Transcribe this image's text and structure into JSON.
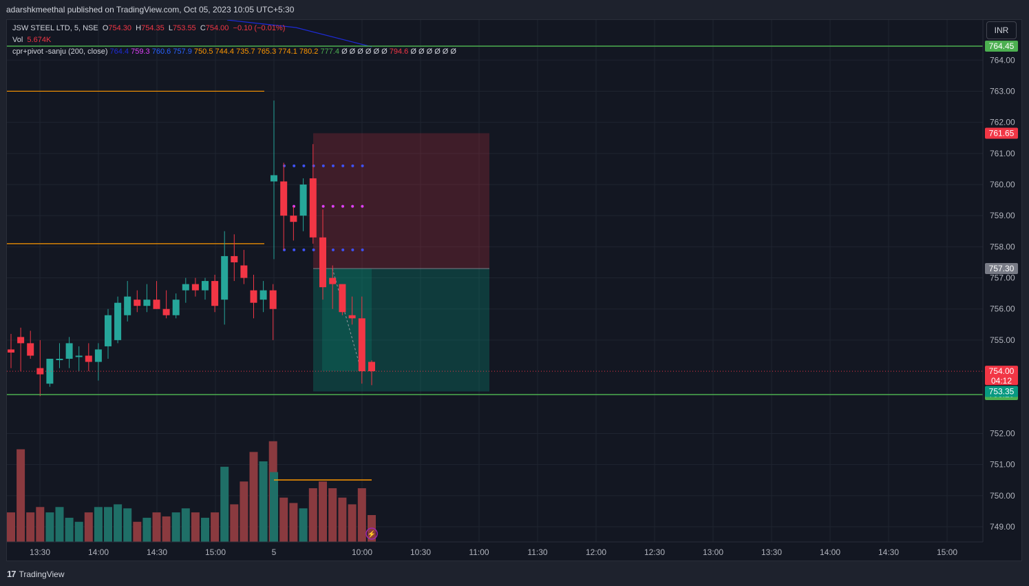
{
  "header": {
    "published": "adarshkmeethal published on TradingView.com, Oct 05, 2023 10:05 UTC+5:30"
  },
  "legend": {
    "symbol": "JSW STEEL LTD, 5, NSE",
    "o_label": "O",
    "o_value": "754.30",
    "h_label": "H",
    "h_value": "754.35",
    "l_label": "L",
    "l_value": "753.55",
    "c_label": "C",
    "c_value": "754.00",
    "change": "−0.10 (−0.01%)",
    "vol_label": "Vol",
    "vol_value": "5.674K",
    "indicator_name": "cpr+pivot -sanju (200, close)",
    "indicator_values": [
      {
        "text": "764.4",
        "color": "#1e2bd6"
      },
      {
        "text": "759.3",
        "color": "#e040fb"
      },
      {
        "text": "760.6",
        "color": "#2962ff"
      },
      {
        "text": "757.9",
        "color": "#2962ff"
      },
      {
        "text": "750.5",
        "color": "#ff9800"
      },
      {
        "text": "744.4",
        "color": "#ff9800"
      },
      {
        "text": "735.7",
        "color": "#ff9800"
      },
      {
        "text": "765.3",
        "color": "#ff9800"
      },
      {
        "text": "774.1",
        "color": "#ff9800"
      },
      {
        "text": "780.2",
        "color": "#ff9800"
      },
      {
        "text": "777.4",
        "color": "#4caf50"
      },
      {
        "text": "Ø Ø Ø Ø Ø Ø",
        "color": "#d1d4dc"
      },
      {
        "text": "794.6",
        "color": "#f23645"
      },
      {
        "text": "Ø Ø Ø Ø Ø Ø",
        "color": "#d1d4dc"
      }
    ]
  },
  "currency": "INR",
  "footer": {
    "brand": "TradingView"
  },
  "colors": {
    "up": "#26a69a",
    "down": "#f23645",
    "up_vol": "#1f6f67",
    "down_vol": "#8a3a3f",
    "green_line": "#4caf50",
    "orange_line": "#ff9800",
    "pivot_blue": "#3f51f5",
    "pivot_magenta": "#e040fb",
    "grid": "#1f2430",
    "bg": "#131722"
  },
  "chart_data": {
    "type": "candlestick",
    "symbol": "JSW STEEL LTD",
    "timeframe": "5",
    "ylim": [
      748.5,
      764.8
    ],
    "y_ticks": [
      "764.00",
      "763.00",
      "762.00",
      "761.00",
      "760.00",
      "759.00",
      "758.00",
      "757.00",
      "756.00",
      "755.00",
      "752.00",
      "751.00",
      "750.00",
      "749.00"
    ],
    "x_ticks": [
      "13:30",
      "14:00",
      "14:30",
      "15:00",
      "5",
      "10:00",
      "10:30",
      "11:00",
      "11:30",
      "12:00",
      "12:30",
      "13:00",
      "13:30",
      "14:00",
      "14:30",
      "15:00"
    ],
    "candles": [
      {
        "o": 754.7,
        "h": 755.2,
        "l": 754.1,
        "c": 754.6
      },
      {
        "o": 755.1,
        "h": 755.4,
        "l": 754.0,
        "c": 754.9
      },
      {
        "o": 754.9,
        "h": 755.3,
        "l": 754.4,
        "c": 754.5
      },
      {
        "o": 754.1,
        "h": 755.0,
        "l": 753.2,
        "c": 753.9
      },
      {
        "o": 753.6,
        "h": 754.4,
        "l": 753.5,
        "c": 754.4
      },
      {
        "o": 754.4,
        "h": 754.9,
        "l": 754.1,
        "c": 754.4
      },
      {
        "o": 754.4,
        "h": 755.1,
        "l": 754.1,
        "c": 754.9
      },
      {
        "o": 754.5,
        "h": 754.8,
        "l": 754.0,
        "c": 754.5
      },
      {
        "o": 754.5,
        "h": 754.9,
        "l": 754.0,
        "c": 754.3
      },
      {
        "o": 754.3,
        "h": 754.9,
        "l": 753.7,
        "c": 754.7
      },
      {
        "o": 754.8,
        "h": 756.0,
        "l": 754.4,
        "c": 755.8
      },
      {
        "o": 755.0,
        "h": 756.4,
        "l": 754.9,
        "c": 756.2
      },
      {
        "o": 755.8,
        "h": 756.9,
        "l": 755.6,
        "c": 756.4
      },
      {
        "o": 756.3,
        "h": 756.6,
        "l": 755.9,
        "c": 756.1
      },
      {
        "o": 756.1,
        "h": 756.8,
        "l": 755.9,
        "c": 756.3
      },
      {
        "o": 756.3,
        "h": 756.9,
        "l": 756.0,
        "c": 756.0
      },
      {
        "o": 756.0,
        "h": 756.6,
        "l": 755.7,
        "c": 755.8
      },
      {
        "o": 755.8,
        "h": 756.5,
        "l": 755.7,
        "c": 756.3
      },
      {
        "o": 756.6,
        "h": 757.0,
        "l": 756.2,
        "c": 756.8
      },
      {
        "o": 756.8,
        "h": 757.0,
        "l": 756.4,
        "c": 756.6
      },
      {
        "o": 756.6,
        "h": 757.0,
        "l": 756.3,
        "c": 756.9
      },
      {
        "o": 756.9,
        "h": 757.1,
        "l": 755.9,
        "c": 756.1
      },
      {
        "o": 756.3,
        "h": 758.5,
        "l": 755.5,
        "c": 757.7
      },
      {
        "o": 757.7,
        "h": 758.4,
        "l": 756.9,
        "c": 757.5
      },
      {
        "o": 757.4,
        "h": 757.9,
        "l": 756.8,
        "c": 757.0
      },
      {
        "o": 756.6,
        "h": 757.1,
        "l": 755.7,
        "c": 756.2
      },
      {
        "o": 756.3,
        "h": 756.9,
        "l": 755.9,
        "c": 756.6
      },
      {
        "o": 756.6,
        "h": 756.8,
        "l": 755.0,
        "c": 756.0
      },
      {
        "o": 760.1,
        "h": 762.7,
        "l": 757.6,
        "c": 760.3
      },
      {
        "o": 760.1,
        "h": 760.7,
        "l": 757.9,
        "c": 759.0
      },
      {
        "o": 759.0,
        "h": 759.3,
        "l": 758.2,
        "c": 758.8
      },
      {
        "o": 759.0,
        "h": 760.2,
        "l": 758.5,
        "c": 760.0
      },
      {
        "o": 760.2,
        "h": 761.3,
        "l": 758.1,
        "c": 758.3
      },
      {
        "o": 758.3,
        "h": 759.2,
        "l": 756.3,
        "c": 756.7
      },
      {
        "o": 757.0,
        "h": 757.4,
        "l": 756.0,
        "c": 756.8
      },
      {
        "o": 756.8,
        "h": 756.8,
        "l": 755.8,
        "c": 755.9
      },
      {
        "o": 755.8,
        "h": 756.4,
        "l": 755.5,
        "c": 755.7
      },
      {
        "o": 755.7,
        "h": 756.4,
        "l": 753.6,
        "c": 754.0
      },
      {
        "o": 754.3,
        "h": 754.35,
        "l": 753.55,
        "c": 754.0
      }
    ],
    "volume_relative": [
      0.22,
      0.69,
      0.22,
      0.26,
      0.22,
      0.26,
      0.18,
      0.15,
      0.22,
      0.26,
      0.26,
      0.28,
      0.25,
      0.15,
      0.18,
      0.22,
      0.19,
      0.22,
      0.25,
      0.22,
      0.18,
      0.22,
      0.56,
      0.28,
      0.45,
      0.67,
      0.6,
      0.75,
      0.52,
      0.33,
      0.29,
      0.25,
      0.4,
      0.45,
      0.4,
      0.33,
      0.28,
      0.4,
      0.2
    ],
    "price_lines": [
      {
        "price": 764.45,
        "label": "764.45",
        "color": "#4caf50"
      },
      {
        "price": 753.25,
        "label": "753.25",
        "color": "#4caf50"
      }
    ],
    "price_labels": [
      {
        "label": "761.65",
        "color": "#f23645"
      },
      {
        "label": "757.30",
        "color": "#787b86"
      },
      {
        "label": "754.00",
        "sub": "04:12",
        "color": "#f23645"
      },
      {
        "label": "753.35",
        "color": "#089981"
      }
    ],
    "position": {
      "entry": 757.3,
      "stop": 761.65,
      "target": 753.35
    },
    "levels": [
      {
        "price": 763.0,
        "color": "#ff9800"
      },
      {
        "price": 758.1,
        "color": "#ff9800"
      }
    ],
    "pivot_dots": [
      {
        "price": 760.6,
        "color": "#3f51f5"
      },
      {
        "price": 759.3,
        "color": "#e040fb"
      },
      {
        "price": 757.9,
        "color": "#3f51f5"
      }
    ]
  }
}
